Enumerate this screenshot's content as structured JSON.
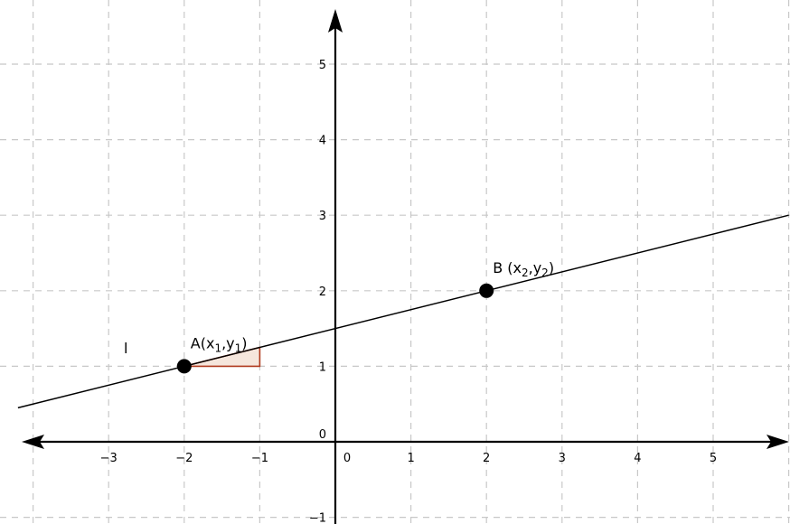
{
  "chart_data": {
    "type": "line",
    "xlim": [
      -4.05,
      6.02
    ],
    "ylim": [
      -1.06,
      5.86
    ],
    "grid": true,
    "x_ticks": [
      {
        "value": -3,
        "label": "-3"
      },
      {
        "value": -2,
        "label": "-2"
      },
      {
        "value": -1,
        "label": "-1"
      },
      {
        "value": 0,
        "label": "0"
      },
      {
        "value": 1,
        "label": "1"
      },
      {
        "value": 2,
        "label": "2"
      },
      {
        "value": 3,
        "label": "3"
      },
      {
        "value": 4,
        "label": "4"
      },
      {
        "value": 5,
        "label": "5"
      }
    ],
    "y_ticks": [
      {
        "value": -1,
        "label": "-1"
      },
      {
        "value": 0,
        "label": "0"
      },
      {
        "value": 1,
        "label": "1"
      },
      {
        "value": 2,
        "label": "2"
      },
      {
        "value": 3,
        "label": "3"
      },
      {
        "value": 4,
        "label": "4"
      },
      {
        "value": 5,
        "label": "5"
      }
    ],
    "line": {
      "name": "l",
      "from": {
        "x": -4.2,
        "y": 0.45
      },
      "to": {
        "x": 6.0,
        "y": 3.0
      }
    },
    "points": [
      {
        "key": "A",
        "x": -2,
        "y": 1,
        "label_main": "A(x",
        "sub1": "1",
        "sep": ",y",
        "sub2": "1",
        "close": ")"
      },
      {
        "key": "B",
        "x": 2,
        "y": 2,
        "label_main": "B (x",
        "sub1": "2",
        "sep": ",y",
        "sub2": "2",
        "close": ")"
      }
    ],
    "slope_triangle": {
      "vertices": [
        {
          "x": -2,
          "y": 1
        },
        {
          "x": -1,
          "y": 1
        },
        {
          "x": -1,
          "y": 1.25
        }
      ],
      "fill": "#f5e6dc",
      "stroke": "#b03a1e"
    }
  }
}
